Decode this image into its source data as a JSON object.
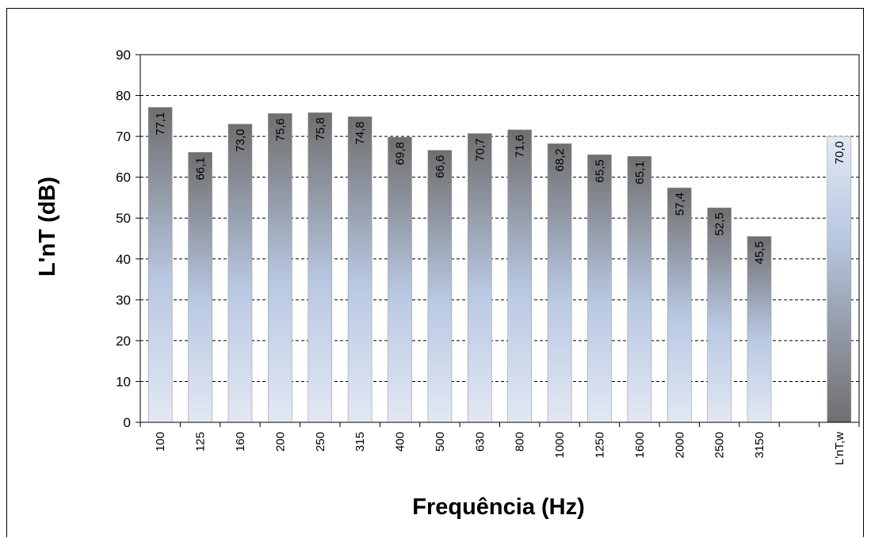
{
  "chart_data": {
    "type": "bar",
    "title": "",
    "xlabel": "Frequência (Hz)",
    "ylabel": "L'nT (dB)",
    "ylim": [
      0,
      90
    ],
    "y_ticks": [
      "0",
      "10",
      "20",
      "30",
      "40",
      "50",
      "60",
      "70",
      "80",
      "90"
    ],
    "grid": "horizontal dashed",
    "categories": [
      "100",
      "125",
      "160",
      "200",
      "250",
      "315",
      "400",
      "500",
      "630",
      "800",
      "1000",
      "1250",
      "1600",
      "2000",
      "2500",
      "3150",
      "",
      "L'nT,w"
    ],
    "values": [
      77.1,
      66.1,
      73.0,
      75.6,
      75.8,
      74.8,
      69.8,
      66.6,
      70.7,
      71.6,
      68.2,
      65.5,
      65.1,
      57.4,
      52.5,
      45.5,
      null,
      70.0
    ],
    "data_labels": [
      "77,1",
      "66,1",
      "73,0",
      "75,6",
      "75,8",
      "74,8",
      "69,8",
      "66,6",
      "70,7",
      "71,6",
      "68,2",
      "65,5",
      "65,1",
      "57,4",
      "52,5",
      "45,5",
      "",
      "70,0"
    ],
    "colors": {
      "bar_top": "#6e6e6e",
      "bar_mid": "#b9c8e2",
      "bar_bottom": "#e2e8f4",
      "summary_top": "#e2e8f4",
      "summary_bottom": "#6e6e6e",
      "grid": "#000000"
    }
  }
}
